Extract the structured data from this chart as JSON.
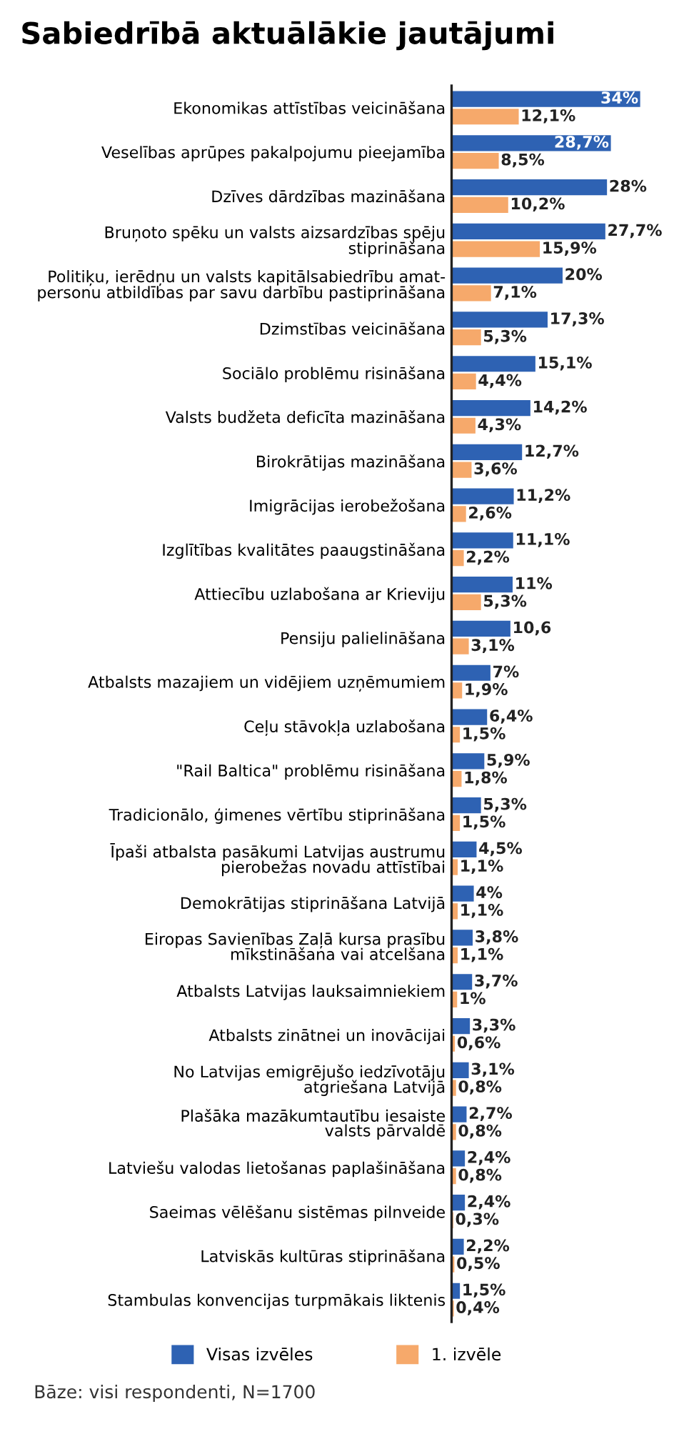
{
  "chart_data": {
    "type": "bar",
    "orientation": "horizontal",
    "title": "Sabiedrībā aktuālākie jautājumi",
    "categories": [
      "Ekonomikas attīstības veicināšana",
      "Veselības aprūpes pakalpojumu pieejamība",
      "Dzīves dārdzības mazināšana",
      "Bruņoto spēku un valsts aizsardzības spēju\nstiprināšana",
      "Politiķu, ierēdņu un valsts kapitālsabiedrību amat-\npersonu atbildības par savu darbību pastiprināšana",
      "Dzimstības veicināšana",
      "Sociālo problēmu risināšana",
      "Valsts budžeta deficīta mazināšana",
      "Birokrātijas mazināšana",
      "Imigrācijas ierobežošana",
      "Izglītības kvalitātes paaugstināšana",
      "Attiecību uzlabošana ar Krieviju",
      "Pensiju palielināšana",
      "Atbalsts mazajiem un vidējiem uzņēmumiem",
      "Ceļu stāvokļa uzlabošana",
      "\"Rail Baltica\" problēmu risināšana",
      "Tradicionālo, ģimenes vērtību stiprināšana",
      "Īpaši atbalsta pasākumi Latvijas austrumu\npierobežas novadu attīstībai",
      "Demokrātijas stiprināšana Latvijā",
      "Eiropas Savienības Zaļā kursa prasību\nmīkstināšana vai atcelšana",
      "Atbalsts Latvijas lauksaimniekiem",
      "Atbalsts zinātnei un inovācijai",
      "No Latvijas emigrējušo iedzīvotāju\natgriešana Latvijā",
      "Plašāka mazākumtautību iesaiste\nvalsts pārvaldē",
      "Latviešu valodas lietošanas paplašināšana",
      "Saeimas vēlēšanu sistēmas pilnveide",
      "Latviskās kultūras stiprināšana",
      "Stambulas konvencijas turpmākais liktenis"
    ],
    "series": [
      {
        "name": "Visas izvēles",
        "color": "#2e62b3",
        "values": [
          34,
          28.7,
          28,
          27.7,
          20,
          17.3,
          15.1,
          14.2,
          12.7,
          11.2,
          11.1,
          11,
          10.6,
          7,
          6.4,
          5.9,
          5.3,
          4.5,
          4,
          3.8,
          3.7,
          3.3,
          3.1,
          2.7,
          2.4,
          2.4,
          2.2,
          1.5
        ],
        "value_labels": [
          "34%",
          "28,7%",
          "28%",
          "27,7%",
          "20%",
          "17,3%",
          "15,1%",
          "14,2%",
          "12,7%",
          "11,2%",
          "11,1%",
          "11%",
          "10,6",
          "7%",
          "6,4%",
          "5,9%",
          "5,3%",
          "4,5%",
          "4%",
          "3,8%",
          "3,7%",
          "3,3%",
          "3,1%",
          "2,7%",
          "2,4%",
          "2,4%",
          "2,2%",
          "1,5%"
        ]
      },
      {
        "name": "1. izvēle",
        "color": "#f6a96b",
        "values": [
          12.1,
          8.5,
          10.2,
          15.9,
          7.1,
          5.3,
          4.4,
          4.3,
          3.6,
          2.6,
          2.2,
          5.3,
          3.1,
          1.9,
          1.5,
          1.8,
          1.5,
          1.1,
          1.1,
          1.1,
          1,
          0.6,
          0.8,
          0.8,
          0.8,
          0.3,
          0.5,
          0.4
        ],
        "value_labels": [
          "12,1%",
          "8,5%",
          "10,2%",
          "15,9%",
          "7,1%",
          "5,3%",
          "4,4%",
          "4,3%",
          "3,6%",
          "2,6%",
          "2,2%",
          "5,3%",
          "3,1%",
          "1,9%",
          "1,5%",
          "1,8%",
          "1,5%",
          "1,1%",
          "1,1%",
          "1,1%",
          "1%",
          "0,6%",
          "0,8%",
          "0,8%",
          "0,8%",
          "0,3%",
          "0,5%",
          "0,4%"
        ]
      }
    ],
    "xlim": [
      0,
      34
    ],
    "tick_labels": "y",
    "grid": false,
    "legend": "bottom",
    "annotations": [
      "Bāze: visi respondenti, N=1700"
    ]
  }
}
